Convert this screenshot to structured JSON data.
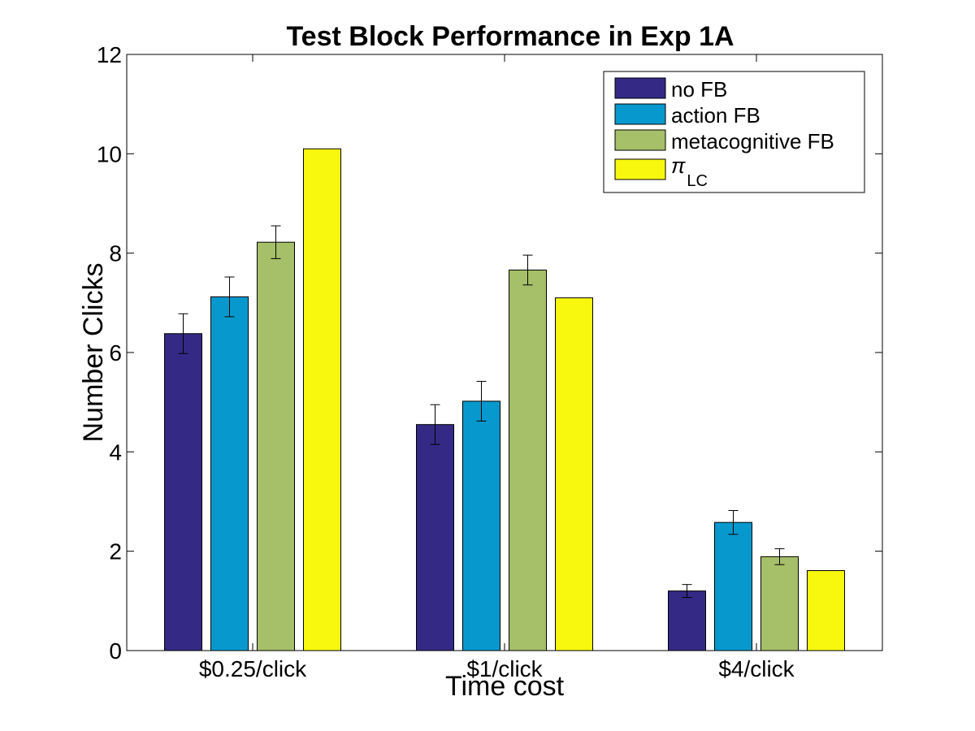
{
  "chart_data": {
    "type": "bar",
    "title": "Test Block Performance in Exp 1A",
    "xlabel": "Time cost",
    "ylabel": "Number Clicks",
    "categories": [
      "$0.25/click",
      "$1/click",
      "$4/click"
    ],
    "ylim": [
      0,
      12
    ],
    "yticks": [
      0,
      2,
      4,
      6,
      8,
      10,
      12
    ],
    "grid": false,
    "legend_position": "top-right",
    "series": [
      {
        "name": "no FB",
        "color": "#342a85",
        "values": [
          6.38,
          4.55,
          1.2
        ],
        "error": [
          0.4,
          0.4,
          0.13
        ]
      },
      {
        "name": "action FB",
        "color": "#0799cd",
        "values": [
          7.12,
          5.02,
          2.58
        ],
        "error": [
          0.4,
          0.4,
          0.24
        ]
      },
      {
        "name": "metacognitive FB",
        "color": "#a6bf69",
        "values": [
          8.22,
          7.66,
          1.89
        ],
        "error": [
          0.33,
          0.3,
          0.16
        ]
      },
      {
        "name": "π",
        "name_subscript": "LC",
        "color": "#f8f80e",
        "values": [
          10.1,
          7.1,
          1.61
        ],
        "error": null
      }
    ]
  }
}
